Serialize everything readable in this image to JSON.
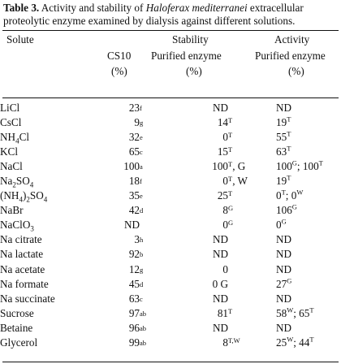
{
  "caption": {
    "label": "Table 3.",
    "text_before": " Activity and stability of ",
    "species": "Haloferax mediterranei",
    "text_after": " extracellular proteolytic enzyme examined by dialysis against different solutions."
  },
  "headers": {
    "solute": "Solute",
    "stability": "Stability",
    "activity": "Activity",
    "cs10": "CS10",
    "purified1": "Purified enzyme",
    "purified2": "Purified enzyme",
    "pct1": "(%)",
    "pct2": "(%)",
    "pct3": "(%)"
  },
  "rows": [
    {
      "solute": "LiCl",
      "cs": "23",
      "cs_note": "f",
      "stab": "ND",
      "stab_sup": "",
      "stab_extra": "",
      "act": "ND"
    },
    {
      "solute": "CsCl",
      "cs": "9",
      "cs_note": "g",
      "stab": "14",
      "stab_sup": "T",
      "stab_extra": "",
      "act": "19T"
    },
    {
      "solute": "NH4Cl",
      "cs": "32",
      "cs_note": "e",
      "stab": "0",
      "stab_sup": "T",
      "stab_extra": "",
      "act": "55T"
    },
    {
      "solute": "KCl",
      "cs": "65",
      "cs_note": "c",
      "stab": "15",
      "stab_sup": "T",
      "stab_extra": "",
      "act": "63T"
    },
    {
      "solute": "NaCl",
      "cs": "100",
      "cs_note": "a",
      "stab": "100",
      "stab_sup": "T",
      "stab_extra": ", G",
      "act": "100G; 100T"
    },
    {
      "solute": "Na2SO4",
      "cs": "18",
      "cs_note": "f",
      "stab": "0",
      "stab_sup": "T",
      "stab_extra": ", W",
      "act": "19T"
    },
    {
      "solute": "(NH4)2SO4",
      "cs": "35",
      "cs_note": "e",
      "stab": "25",
      "stab_sup": "T",
      "stab_extra": "",
      "act": "0T; 0W"
    },
    {
      "solute": "NaBr",
      "cs": "42",
      "cs_note": "d",
      "stab": "8",
      "stab_sup": "G",
      "stab_extra": "",
      "act": "106G"
    },
    {
      "solute": "NaClO3",
      "cs": "ND",
      "cs_note": "",
      "stab": "0",
      "stab_sup": "G",
      "stab_extra": "",
      "act": "0G"
    },
    {
      "solute": "Na citrate",
      "cs": "3",
      "cs_note": "h",
      "stab": "ND",
      "stab_sup": "",
      "stab_extra": "",
      "act": "ND"
    },
    {
      "solute": "Na lactate",
      "cs": "92",
      "cs_note": "b",
      "stab": "ND",
      "stab_sup": "",
      "stab_extra": "",
      "act": "ND"
    },
    {
      "solute": "Na acetate",
      "cs": "12",
      "cs_note": "g",
      "stab": "0",
      "stab_sup": "",
      "stab_extra": "",
      "act": "ND"
    },
    {
      "solute": "Na formate",
      "cs": "45",
      "cs_note": "d",
      "stab": "0 G",
      "stab_sup": "",
      "stab_extra": "",
      "act": "27G"
    },
    {
      "solute": "Na succinate",
      "cs": "63",
      "cs_note": "c",
      "stab": "ND",
      "stab_sup": "",
      "stab_extra": "",
      "act": "ND"
    },
    {
      "solute": "Sucrose",
      "cs": "97",
      "cs_note": "ab",
      "stab": "81",
      "stab_sup": "T",
      "stab_extra": "",
      "act": "58W; 65T"
    },
    {
      "solute": "Betaine",
      "cs": "96",
      "cs_note": "ab",
      "stab": "ND",
      "stab_sup": "",
      "stab_extra": "",
      "act": "ND"
    },
    {
      "solute": "Glycerol",
      "cs": "99",
      "cs_note": "ab",
      "stab": "8",
      "stab_sup": "T,W",
      "stab_extra": "",
      "act": "25W; 44T"
    }
  ]
}
